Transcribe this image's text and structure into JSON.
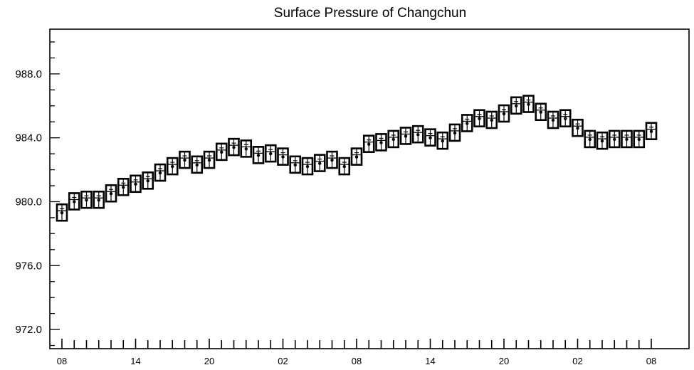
{
  "chart_data": {
    "type": "scatter",
    "title": "Surface Pressure of Changchun",
    "xlabel": "",
    "ylabel": "",
    "ylim": [
      970.8,
      990.8
    ],
    "yticks": [
      "988.0",
      "984.0",
      "980.0",
      "976.0",
      "972.0"
    ],
    "ytick_values": [
      988,
      984,
      980,
      976,
      972
    ],
    "xticks": [
      "08",
      "14",
      "20",
      "02",
      "08",
      "14",
      "20",
      "02",
      "08"
    ],
    "xtick_hours": [
      0,
      6,
      12,
      18,
      24,
      30,
      36,
      42,
      48
    ],
    "x_step_hours": 1,
    "grid": false,
    "marker": "boxed-whisker",
    "series": [
      {
        "values": [
          979.3,
          980.0,
          980.1,
          980.1,
          980.5,
          980.9,
          981.1,
          981.3,
          981.8,
          982.2,
          982.6,
          982.3,
          982.6,
          983.1,
          983.4,
          983.3,
          982.9,
          983.0,
          982.8,
          982.3,
          982.2,
          982.4,
          982.6,
          982.2,
          982.8,
          983.6,
          983.7,
          983.9,
          984.1,
          984.2,
          984.0,
          983.8,
          984.3,
          984.9,
          985.2,
          985.1,
          985.5,
          986.0,
          986.1,
          985.6,
          985.1,
          985.2,
          984.6,
          983.9,
          983.8,
          983.9,
          983.9,
          983.9,
          984.4
        ]
      }
    ]
  }
}
